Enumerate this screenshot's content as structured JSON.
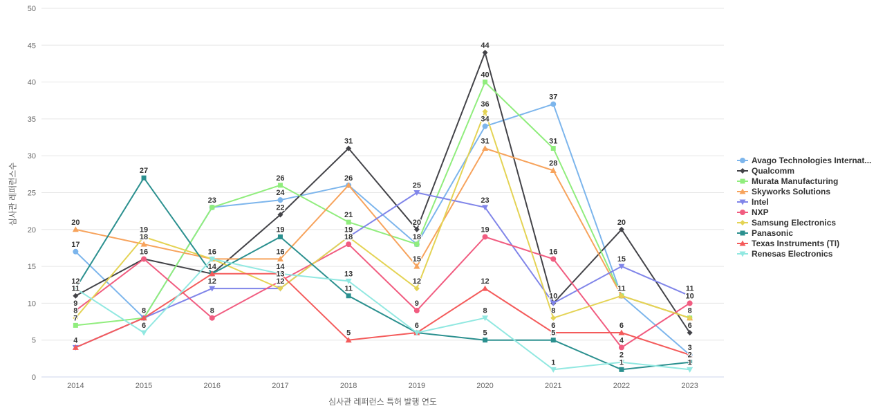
{
  "chart_data": {
    "type": "line",
    "title": "",
    "xlabel": "심사관 레퍼런스 특허 발행 연도",
    "ylabel": "심사관 레퍼런스수",
    "categories": [
      "2014",
      "2015",
      "2016",
      "2017",
      "2018",
      "2019",
      "2020",
      "2021",
      "2022",
      "2023"
    ],
    "ylim": [
      0,
      50
    ],
    "ytick_step": 5,
    "grid": "horizontal",
    "legend_position": "right",
    "axis_line_color": "#ccd6eb",
    "grid_color": "#e6e6e6",
    "label_color": "#666666",
    "data_label_color": "#333333",
    "series": [
      {
        "name": "Avago Technologies Internat...",
        "color": "#7cb5ec",
        "marker": "circle",
        "values": [
          17,
          8,
          23,
          24,
          26,
          18,
          34,
          37,
          11,
          3
        ]
      },
      {
        "name": "Qualcomm",
        "color": "#434348",
        "marker": "diamond",
        "values": [
          11,
          16,
          14,
          22,
          31,
          20,
          44,
          10,
          20,
          6
        ]
      },
      {
        "name": "Murata Manufacturing",
        "color": "#90ed7d",
        "marker": "square",
        "values": [
          7,
          8,
          23,
          26,
          21,
          18,
          40,
          31,
          11,
          8
        ]
      },
      {
        "name": "Skyworks Solutions",
        "color": "#f7a35c",
        "marker": "triangle",
        "values": [
          20,
          18,
          16,
          16,
          26,
          15,
          31,
          28,
          11,
          8
        ]
      },
      {
        "name": "Intel",
        "color": "#8085e9",
        "marker": "triangle-down",
        "values": [
          4,
          8,
          12,
          12,
          19,
          25,
          23,
          10,
          15,
          11
        ]
      },
      {
        "name": "NXP",
        "color": "#f15c80",
        "marker": "circle",
        "values": [
          9,
          16,
          8,
          13,
          18,
          9,
          19,
          16,
          4,
          10
        ]
      },
      {
        "name": "Samsung Electronics",
        "color": "#e4d354",
        "marker": "diamond",
        "values": [
          8,
          19,
          16,
          12,
          19,
          12,
          36,
          8,
          11,
          8
        ]
      },
      {
        "name": "Panasonic",
        "color": "#2b908f",
        "marker": "square",
        "values": [
          12,
          27,
          14,
          19,
          11,
          6,
          5,
          5,
          1,
          2
        ]
      },
      {
        "name": "Texas Instruments (TI)",
        "color": "#f45b5b",
        "marker": "triangle",
        "values": [
          4,
          8,
          14,
          14,
          5,
          6,
          12,
          6,
          6,
          3
        ]
      },
      {
        "name": "Renesas Electronics",
        "color": "#91e8e1",
        "marker": "triangle-down",
        "values": [
          12,
          6,
          16,
          14,
          13,
          6,
          8,
          1,
          2,
          1
        ]
      }
    ]
  }
}
